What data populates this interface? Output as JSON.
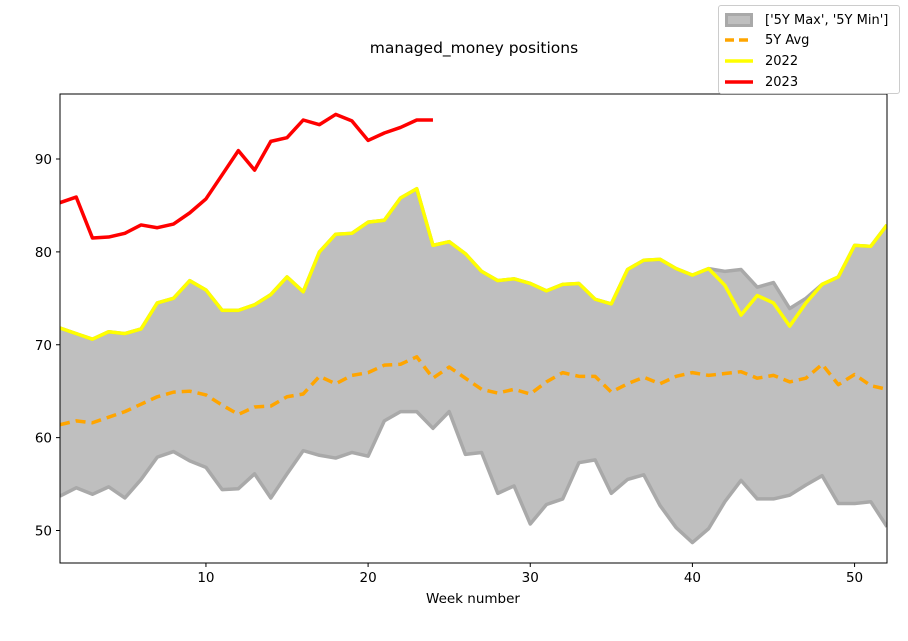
{
  "chart_data": {
    "type": "area",
    "title": "managed_money positions",
    "xlabel": "Week number",
    "ylabel": "",
    "xlim": [
      1,
      52
    ],
    "ylim": [
      46.5,
      97
    ],
    "x_ticks": [
      10,
      20,
      30,
      40,
      50
    ],
    "y_ticks": [
      50,
      60,
      70,
      80,
      90
    ],
    "grid": false,
    "legend_position": "top-right",
    "weeks": [
      1,
      2,
      3,
      4,
      5,
      6,
      7,
      8,
      9,
      10,
      11,
      12,
      13,
      14,
      15,
      16,
      17,
      18,
      19,
      20,
      21,
      22,
      23,
      24,
      25,
      26,
      27,
      28,
      29,
      30,
      31,
      32,
      33,
      34,
      35,
      36,
      37,
      38,
      39,
      40,
      41,
      42,
      43,
      44,
      45,
      46,
      47,
      48,
      49,
      50,
      51,
      52
    ],
    "band": {
      "name": "['5Y Max', '5Y Min']",
      "color": "#bfbfbf",
      "edge_color": "#a9a9a9",
      "max": [
        71.8,
        71.2,
        70.6,
        71.4,
        71.2,
        71.7,
        74.5,
        75.0,
        76.9,
        75.9,
        73.7,
        73.7,
        74.3,
        75.4,
        77.3,
        75.7,
        80.0,
        81.9,
        82.0,
        83.2,
        83.4,
        85.8,
        86.8,
        80.7,
        81.1,
        79.8,
        77.9,
        76.9,
        77.1,
        76.6,
        75.8,
        76.5,
        76.6,
        74.9,
        74.4,
        78.1,
        79.1,
        79.2,
        78.2,
        77.5,
        78.2,
        77.9,
        78.1,
        76.2,
        76.7,
        73.9,
        75.0,
        76.5,
        77.3,
        80.7,
        80.6,
        82.9
      ],
      "min": [
        53.7,
        54.6,
        53.9,
        54.7,
        53.5,
        55.5,
        57.9,
        58.5,
        57.5,
        56.8,
        54.4,
        54.5,
        56.1,
        53.5,
        56.1,
        58.6,
        58.1,
        57.8,
        58.4,
        58.0,
        61.8,
        62.8,
        62.8,
        61.0,
        62.8,
        58.2,
        58.4,
        54.0,
        54.8,
        50.7,
        52.8,
        53.4,
        57.3,
        57.6,
        54.0,
        55.5,
        56.0,
        52.7,
        50.3,
        48.7,
        50.2,
        53.1,
        55.4,
        53.4,
        53.4,
        53.8,
        54.9,
        55.9,
        52.9,
        52.9,
        53.1,
        50.4
      ]
    },
    "series": [
      {
        "name": "5Y Avg",
        "color": "#ffa500",
        "style": "dashed",
        "values": [
          61.4,
          61.8,
          61.6,
          62.2,
          62.8,
          63.6,
          64.4,
          64.9,
          65.0,
          64.6,
          63.5,
          62.5,
          63.3,
          63.4,
          64.4,
          64.7,
          66.6,
          65.8,
          66.7,
          67.0,
          67.8,
          67.9,
          68.7,
          66.4,
          67.6,
          66.4,
          65.2,
          64.8,
          65.2,
          64.7,
          66.0,
          67.0,
          66.6,
          66.6,
          64.9,
          65.8,
          66.5,
          65.8,
          66.6,
          67.0,
          66.7,
          66.9,
          67.1,
          66.4,
          66.7,
          66.0,
          66.4,
          67.9,
          65.7,
          66.8,
          65.6,
          65.2
        ]
      },
      {
        "name": "2022",
        "color": "#ffff00",
        "style": "solid",
        "values": [
          71.8,
          71.2,
          70.6,
          71.4,
          71.2,
          71.7,
          74.5,
          75.0,
          76.9,
          75.9,
          73.7,
          73.7,
          74.3,
          75.4,
          77.3,
          75.7,
          80.0,
          81.9,
          82.0,
          83.2,
          83.4,
          85.8,
          86.8,
          80.7,
          81.1,
          79.8,
          77.9,
          76.9,
          77.1,
          76.6,
          75.8,
          76.5,
          76.6,
          74.9,
          74.4,
          78.1,
          79.1,
          79.2,
          78.2,
          77.5,
          78.2,
          76.4,
          73.2,
          75.3,
          74.5,
          72.0,
          74.5,
          76.5,
          77.3,
          80.7,
          80.6,
          82.9
        ]
      },
      {
        "name": "2023",
        "color": "#ff0000",
        "style": "solid",
        "values": [
          85.3,
          85.9,
          81.5,
          81.6,
          82.0,
          82.9,
          82.6,
          83.0,
          84.2,
          85.7,
          88.3,
          90.9,
          88.8,
          91.9,
          92.3,
          94.2,
          93.7,
          94.8,
          94.1,
          92.0,
          92.8,
          93.4,
          94.2,
          94.2
        ]
      }
    ]
  }
}
